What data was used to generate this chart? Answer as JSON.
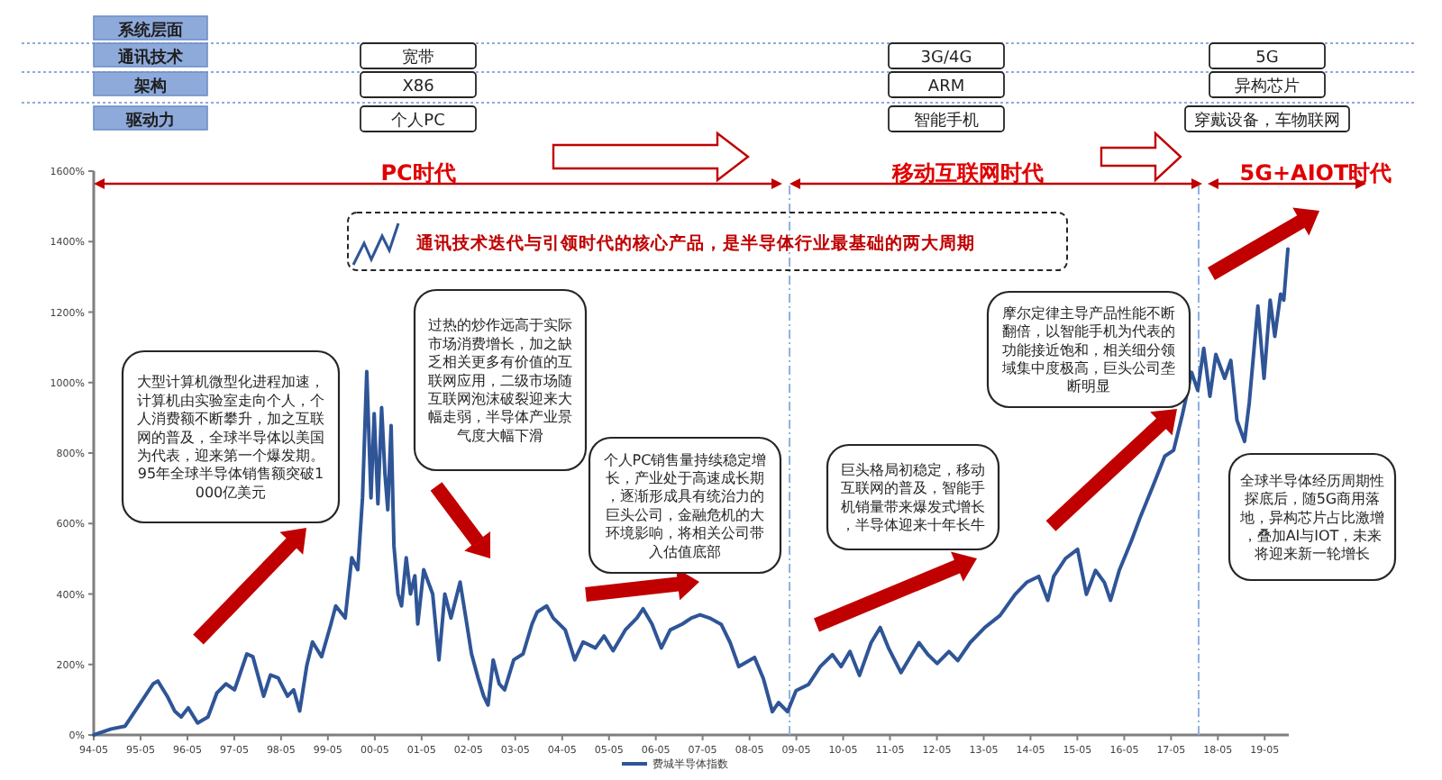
{
  "chart_data": {
    "type": "line",
    "x": [
      "1994-05-01",
      "1994-09-13",
      "1995-01-01",
      "1995-05-07",
      "1995-08-07",
      "1995-09-13",
      "1995-11-25",
      "1996-01-22",
      "1996-03-13",
      "1996-05-07",
      "1996-07-19",
      "1996-10-08",
      "1996-12-16",
      "1997-02-25",
      "1997-05-03",
      "1997-08-07",
      "1997-09-23",
      "1997-12-16",
      "1998-02-07",
      "1998-04-08",
      "1998-06-20",
      "1998-08-07",
      "1998-09-23",
      "1998-11-17",
      "1999-01-01",
      "1999-03-13",
      "1999-05-25",
      "1999-07-01",
      "1999-09-13",
      "1999-11-03",
      "1999-12-20",
      "2000-01-26",
      "2000-02-28",
      "2000-04-01",
      "2000-04-26",
      "2000-05-25",
      "2000-06-23",
      "2000-07-19",
      "2000-08-10",
      "2000-09-05",
      "2000-09-27",
      "2000-10-29",
      "2000-11-25",
      "2001-01-01",
      "2001-02-03",
      "2001-03-09",
      "2001-04-01",
      "2001-05-17",
      "2001-07-26",
      "2001-09-13",
      "2001-10-29",
      "2001-12-16",
      "2002-02-25",
      "2002-04-11",
      "2002-05-25",
      "2002-07-15",
      "2002-08-28",
      "2002-10-01",
      "2002-11-10",
      "2002-12-27",
      "2003-02-07",
      "2003-04-19",
      "2003-07-01",
      "2003-09-09",
      "2003-10-19",
      "2004-01-01",
      "2004-02-21",
      "2004-05-25",
      "2004-08-07",
      "2004-10-11",
      "2005-01-15",
      "2005-03-23",
      "2005-06-02",
      "2005-09-05",
      "2005-12-05",
      "2006-01-22",
      "2006-04-01",
      "2006-06-13",
      "2006-08-21",
      "2006-11-25",
      "2007-02-03",
      "2007-04-11",
      "2007-06-23",
      "2007-09-23",
      "2007-12-02",
      "2008-02-07",
      "2008-06-09",
      "2008-08-17",
      "2008-10-26",
      "2008-12-13",
      "2009-02-21",
      "2009-04-29",
      "2009-08-03",
      "2009-11-03",
      "2010-02-07",
      "2010-04-15",
      "2010-06-23",
      "2010-09-05",
      "2010-12-05",
      "2011-02-14",
      "2011-04-22",
      "2011-07-26",
      "2011-10-04",
      "2011-12-13",
      "2012-02-21",
      "2012-05-03",
      "2012-08-03",
      "2012-10-11",
      "2013-01-15",
      "2013-05-10",
      "2013-09-05",
      "2014-01-01",
      "2014-04-01",
      "2014-07-04",
      "2014-09-13",
      "2014-10-29",
      "2015-01-29",
      "2015-05-03",
      "2015-07-11",
      "2015-09-20",
      "2015-11-28",
      "2016-01-15",
      "2016-03-23",
      "2016-06-27",
      "2016-09-05",
      "2016-12-09",
      "2017-03-13",
      "2017-05-21",
      "2017-07-29",
      "2017-10-08",
      "2017-11-25",
      "2018-01-11",
      "2018-02-28",
      "2018-04-15",
      "2018-06-23",
      "2018-08-10",
      "2018-09-27",
      "2018-11-25",
      "2019-01-01",
      "2019-03-09",
      "2019-04-26",
      "2019-06-13",
      "2019-07-19",
      "2019-09-02",
      "2019-09-27",
      "2019-10-29"
    ],
    "series": [
      {
        "name": "费城半导体指数",
        "color": "#2f5597",
        "values": [
          0,
          17,
          25,
          94,
          145,
          153,
          110,
          68,
          51,
          77,
          34,
          51,
          119,
          145,
          128,
          230,
          222,
          110,
          170,
          162,
          110,
          128,
          68,
          196,
          264,
          222,
          315,
          366,
          332,
          503,
          469,
          673,
          1031,
          673,
          912,
          656,
          929,
          741,
          639,
          878,
          537,
          400,
          366,
          503,
          400,
          452,
          315,
          469,
          400,
          213,
          400,
          332,
          434,
          332,
          230,
          162,
          110,
          85,
          213,
          145,
          128,
          213,
          230,
          315,
          349,
          366,
          332,
          298,
          213,
          264,
          247,
          281,
          239,
          298,
          332,
          358,
          315,
          247,
          298,
          315,
          332,
          341,
          332,
          314,
          262,
          194,
          220,
          160,
          66,
          92,
          66,
          126,
          143,
          194,
          228,
          194,
          237,
          169,
          262,
          305,
          245,
          177,
          220,
          262,
          228,
          203,
          237,
          211,
          262,
          305,
          339,
          399,
          433,
          450,
          382,
          450,
          501,
          527,
          399,
          467,
          433,
          382,
          467,
          552,
          620,
          705,
          791,
          808,
          910,
          1029,
          978,
          1097,
          961,
          1080,
          1012,
          1063,
          893,
          833,
          944,
          1217,
          1012,
          1234,
          1131,
          1251,
          1234,
          1379
        ]
      }
    ],
    "xlim": [
      "1994-05-01",
      "2019-11-05"
    ],
    "xticks": [
      {
        "value": "1994-05-01",
        "label": "94-05"
      },
      {
        "value": "1995-05-01",
        "label": "95-05"
      },
      {
        "value": "1996-05-01",
        "label": "96-05"
      },
      {
        "value": "1997-05-01",
        "label": "97-05"
      },
      {
        "value": "1998-05-01",
        "label": "98-05"
      },
      {
        "value": "1999-05-01",
        "label": "99-05"
      },
      {
        "value": "2000-05-01",
        "label": "00-05"
      },
      {
        "value": "2001-05-01",
        "label": "01-05"
      },
      {
        "value": "2002-05-01",
        "label": "02-05"
      },
      {
        "value": "2003-05-01",
        "label": "03-05"
      },
      {
        "value": "2004-05-01",
        "label": "04-05"
      },
      {
        "value": "2005-05-01",
        "label": "05-05"
      },
      {
        "value": "2006-05-01",
        "label": "06-05"
      },
      {
        "value": "2007-05-01",
        "label": "07-05"
      },
      {
        "value": "2008-05-01",
        "label": "08-05"
      },
      {
        "value": "2009-05-01",
        "label": "09-05"
      },
      {
        "value": "2010-05-01",
        "label": "10-05"
      },
      {
        "value": "2011-05-01",
        "label": "11-05"
      },
      {
        "value": "2012-05-01",
        "label": "12-05"
      },
      {
        "value": "2013-05-01",
        "label": "13-05"
      },
      {
        "value": "2014-05-01",
        "label": "14-05"
      },
      {
        "value": "2015-05-01",
        "label": "15-05"
      },
      {
        "value": "2016-05-01",
        "label": "16-05"
      },
      {
        "value": "2017-05-01",
        "label": "17-05"
      },
      {
        "value": "2018-05-01",
        "label": "18-05"
      },
      {
        "value": "2019-05-01",
        "label": "19-05"
      }
    ],
    "ylim": [
      0,
      1600
    ],
    "yticks": [
      {
        "value": 0,
        "label": "0%"
      },
      {
        "value": 200,
        "label": "200%"
      },
      {
        "value": 400,
        "label": "400%"
      },
      {
        "value": 600,
        "label": "600%"
      },
      {
        "value": 800,
        "label": "800%"
      },
      {
        "value": 1000,
        "label": "1000%"
      },
      {
        "value": 1200,
        "label": "1200%"
      },
      {
        "value": 1400,
        "label": "1400%"
      },
      {
        "value": 1600,
        "label": "1600%"
      }
    ],
    "ref_lines": [
      {
        "axis": "x",
        "value": "2009-03-09",
        "color": "#8fb0e0",
        "line_style": "dashed"
      },
      {
        "axis": "x",
        "value": "2017-12-02",
        "color": "#8fb0e0",
        "line_style": "dashed"
      }
    ],
    "legend": "bottom",
    "annotations": [
      "系统层面",
      "通讯技术",
      "架构",
      "驱动力",
      "宽带",
      "X86",
      "个人PC",
      "3G/4G",
      "ARM",
      "智能手机",
      "5G",
      "异构芯片",
      "穿戴设备，车物联网",
      "PC时代",
      "移动互联网时代",
      "5G+AIOT时代",
      "通讯技术迭代与引领时代的核心产品，是半导体行业最基础的两大周期",
      "大型计算机微型化进程加速，计算机由实验室走向个人，个人消费额不断攀升，加之互联网的普及，全球半导体以美国为代表，迎来第一个爆发期。95年全球半导体销售额突破1000亿美元",
      "过热的炒作远高于实际市场消费增长，加之缺乏相关更多有价值的互联网应用，二级市场随互联网泡沫破裂迎来大幅走弱，半导体产业景气度大幅下滑",
      "个人PC销售量持续稳定增长，产业处于高速成长期，逐渐形成具有统治力的巨头公司，金融危机的大环境影响，将相关公司带入估值底部",
      "巨头格局初稳定，移动互联网的普及，智能手机销量带来爆发式增长，半导体迎来十年长牛",
      "摩尔定律主导产品性能不断翻倍，以智能手机为代表的功能接近饱和，相关细分领域集中度极高，巨头公司垄断明显",
      "全球半导体经历周期性探底后，随5G商用落地，异构芯片占比激增，叠加AI与IOT，未来将迎来新一轮增长"
    ]
  }
}
